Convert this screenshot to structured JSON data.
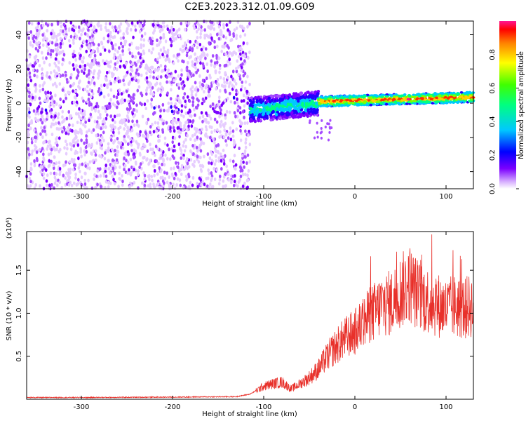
{
  "title": "C2E3.2023.312.01.09.G09",
  "colors": {
    "snr_line": "#e8302a",
    "spectrogram_low": "#7b00ff",
    "spectrogram_high": "#ff0000"
  },
  "chart_data": [
    {
      "type": "heatmap",
      "title": "C2E3.2023.312.01.09.G09",
      "xlabel": "Height of straight line (km)",
      "ylabel": "Frequency (Hz)",
      "xlim": [
        -360,
        130
      ],
      "ylim": [
        -50,
        48
      ],
      "x_ticks": [
        "-300",
        "-200",
        "-100",
        "0",
        "100"
      ],
      "y_ticks": [
        "-40",
        "-20",
        "0",
        "20",
        "40"
      ],
      "colorbar": {
        "label": "Normalized spectral amplitude",
        "range": [
          0,
          1
        ],
        "ticks": [
          "0.0",
          "0.2",
          "0.4",
          "0.6",
          "0.8"
        ],
        "colormap": "rainbow"
      },
      "description_regions": [
        {
          "x_range": [
            -360,
            -115
          ],
          "freq_range": [
            -50,
            48
          ],
          "level": [
            0.05,
            0.3
          ]
        },
        {
          "x_range": [
            -115,
            -40
          ],
          "freq_range": [
            -12,
            6
          ],
          "level": [
            0.2,
            0.6
          ]
        },
        {
          "x_range": [
            -40,
            130
          ],
          "freq_range": [
            -1,
            5
          ],
          "level": [
            0.4,
            1.0
          ]
        }
      ]
    },
    {
      "type": "line",
      "xlabel": "Height of straight line (km)",
      "ylabel": "SNR (10 * v/v)",
      "y_multiplier": "(x10⁴)",
      "xlim": [
        -360,
        130
      ],
      "ylim": [
        0,
        1.95
      ],
      "x_ticks": [
        "-300",
        "-200",
        "-100",
        "0",
        "100"
      ],
      "y_ticks": [
        "0.5",
        "1.0",
        "1.5"
      ],
      "series": [
        {
          "x": [
            -360,
            -300,
            -200,
            -130,
            -115,
            -100,
            -90,
            -80,
            -70,
            -60,
            -50,
            -40,
            -30,
            -20,
            -10,
            0,
            10,
            20,
            30,
            40,
            50,
            60,
            70,
            80,
            90,
            100,
            110,
            120,
            130
          ],
          "values": [
            0.02,
            0.02,
            0.025,
            0.03,
            0.06,
            0.15,
            0.18,
            0.2,
            0.12,
            0.18,
            0.25,
            0.35,
            0.5,
            0.62,
            0.72,
            0.78,
            0.9,
            1.0,
            1.1,
            1.12,
            1.25,
            1.35,
            1.2,
            1.15,
            1.1,
            1.05,
            1.08,
            1.05,
            1.1
          ]
        }
      ]
    }
  ]
}
